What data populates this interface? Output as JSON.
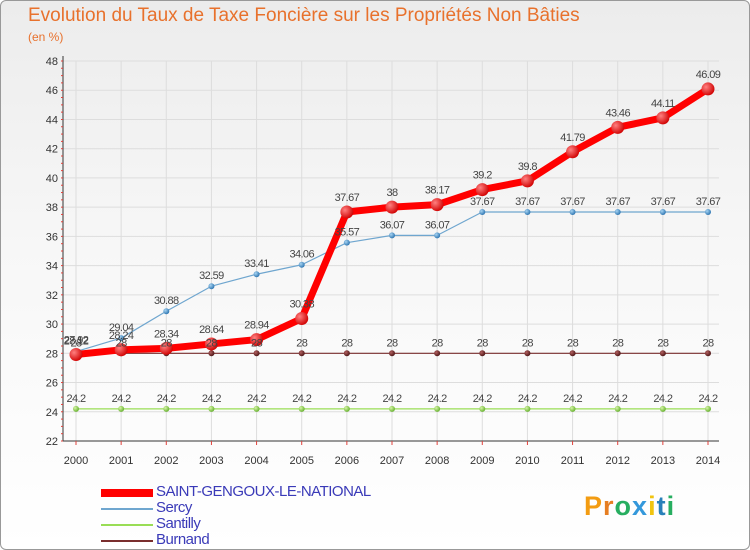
{
  "chart_data": {
    "type": "line",
    "title": "Evolution du Taux de Taxe Foncière sur les Propriétés Non Bâties",
    "unit_label": "(en %)",
    "xlabel": "",
    "ylabel": "",
    "ylim": [
      22,
      48
    ],
    "y_ticks": [
      22,
      24,
      26,
      28,
      30,
      32,
      34,
      36,
      38,
      40,
      42,
      44,
      46,
      48
    ],
    "categories": [
      "2000",
      "2001",
      "2002",
      "2003",
      "2004",
      "2005",
      "2006",
      "2007",
      "2008",
      "2009",
      "2010",
      "2011",
      "2012",
      "2013",
      "2014"
    ],
    "series": [
      {
        "name": "SAINT-GENGOUX-LE-NATIONAL",
        "color": "#ff0000",
        "values": [
          27.92,
          28.24,
          28.34,
          28.64,
          28.94,
          30.38,
          37.67,
          38,
          38.17,
          39.2,
          39.8,
          41.79,
          43.46,
          44.11,
          46.09
        ],
        "labels": [
          "27.92",
          "28.24",
          "28.34",
          "28.64",
          "28.94",
          "30.38",
          "37.67",
          "38",
          "38.17",
          "39.2",
          "39.8",
          "41.79",
          "43.46",
          "44.11",
          "46.09"
        ]
      },
      {
        "name": "Sercy",
        "color": "#6fa6cf",
        "values": [
          28.12,
          29.04,
          30.88,
          32.59,
          33.41,
          34.06,
          35.57,
          36.07,
          36.07,
          37.67,
          37.67,
          37.67,
          37.67,
          37.67,
          37.67
        ],
        "labels": [
          "28.12",
          "29.04",
          "30.88",
          "32.59",
          "33.41",
          "34.06",
          "35.57",
          "36.07",
          "36.07",
          "37.67",
          "37.67",
          "37.67",
          "37.67",
          "37.67",
          "37.67"
        ]
      },
      {
        "name": "Santilly",
        "color": "#99dd55",
        "values": [
          24.2,
          24.2,
          24.2,
          24.2,
          24.2,
          24.2,
          24.2,
          24.2,
          24.2,
          24.2,
          24.2,
          24.2,
          24.2,
          24.2,
          24.2
        ],
        "labels": [
          "24.2",
          "24.2",
          "24.2",
          "24.2",
          "24.2",
          "24.2",
          "24.2",
          "24.2",
          "24.2",
          "24.2",
          "24.2",
          "24.2",
          "24.2",
          "24.2",
          "24.2"
        ]
      },
      {
        "name": "Burnand",
        "color": "#7a2e2e",
        "values": [
          28,
          28,
          28,
          28,
          28,
          28,
          28,
          28,
          28,
          28,
          28,
          28,
          28,
          28,
          28
        ],
        "labels": [
          "28",
          "28",
          "28",
          "28",
          "28",
          "28",
          "28",
          "28",
          "28",
          "28",
          "28",
          "28",
          "28",
          "28",
          "28"
        ]
      }
    ]
  },
  "brand": {
    "text": "Proxiti",
    "colors": [
      "#f39c12",
      "#e67e22",
      "#27ae60",
      "#3498db",
      "#f1c40f",
      "#2980b9",
      "#27ae60"
    ]
  }
}
